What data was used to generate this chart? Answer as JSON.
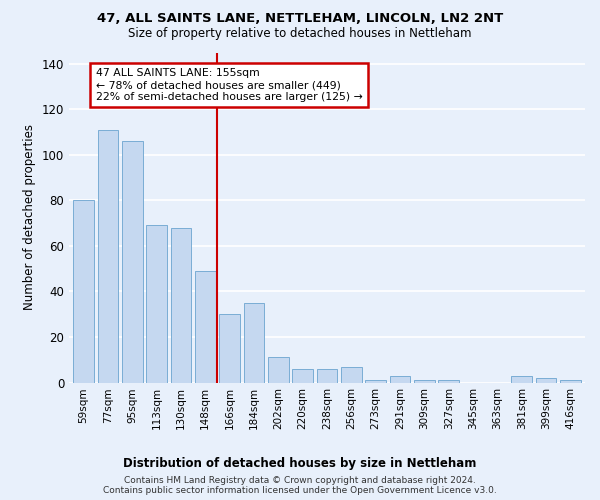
{
  "title": "47, ALL SAINTS LANE, NETTLEHAM, LINCOLN, LN2 2NT",
  "subtitle": "Size of property relative to detached houses in Nettleham",
  "xlabel_bottom": "Distribution of detached houses by size in Nettleham",
  "ylabel": "Number of detached properties",
  "bar_labels": [
    "59sqm",
    "77sqm",
    "95sqm",
    "113sqm",
    "130sqm",
    "148sqm",
    "166sqm",
    "184sqm",
    "202sqm",
    "220sqm",
    "238sqm",
    "256sqm",
    "273sqm",
    "291sqm",
    "309sqm",
    "327sqm",
    "345sqm",
    "363sqm",
    "381sqm",
    "399sqm",
    "416sqm"
  ],
  "bar_values": [
    80,
    111,
    106,
    69,
    68,
    49,
    30,
    35,
    11,
    6,
    6,
    7,
    1,
    3,
    1,
    1,
    0,
    0,
    3,
    2,
    1
  ],
  "bar_color": "#c5d8f0",
  "bar_edge_color": "#7aadd4",
  "bg_color": "#e8f0fb",
  "fig_bg_color": "#e8f0fb",
  "grid_color": "#ffffff",
  "vline_color": "#cc0000",
  "vline_x": 5.5,
  "annotation_title": "47 ALL SAINTS LANE: 155sqm",
  "annotation_line1": "← 78% of detached houses are smaller (449)",
  "annotation_line2": "22% of semi-detached houses are larger (125) →",
  "annotation_box_color": "#cc0000",
  "ylim": [
    0,
    145
  ],
  "yticks": [
    0,
    20,
    40,
    60,
    80,
    100,
    120,
    140
  ],
  "footnote1": "Contains HM Land Registry data © Crown copyright and database right 2024.",
  "footnote2": "Contains public sector information licensed under the Open Government Licence v3.0."
}
